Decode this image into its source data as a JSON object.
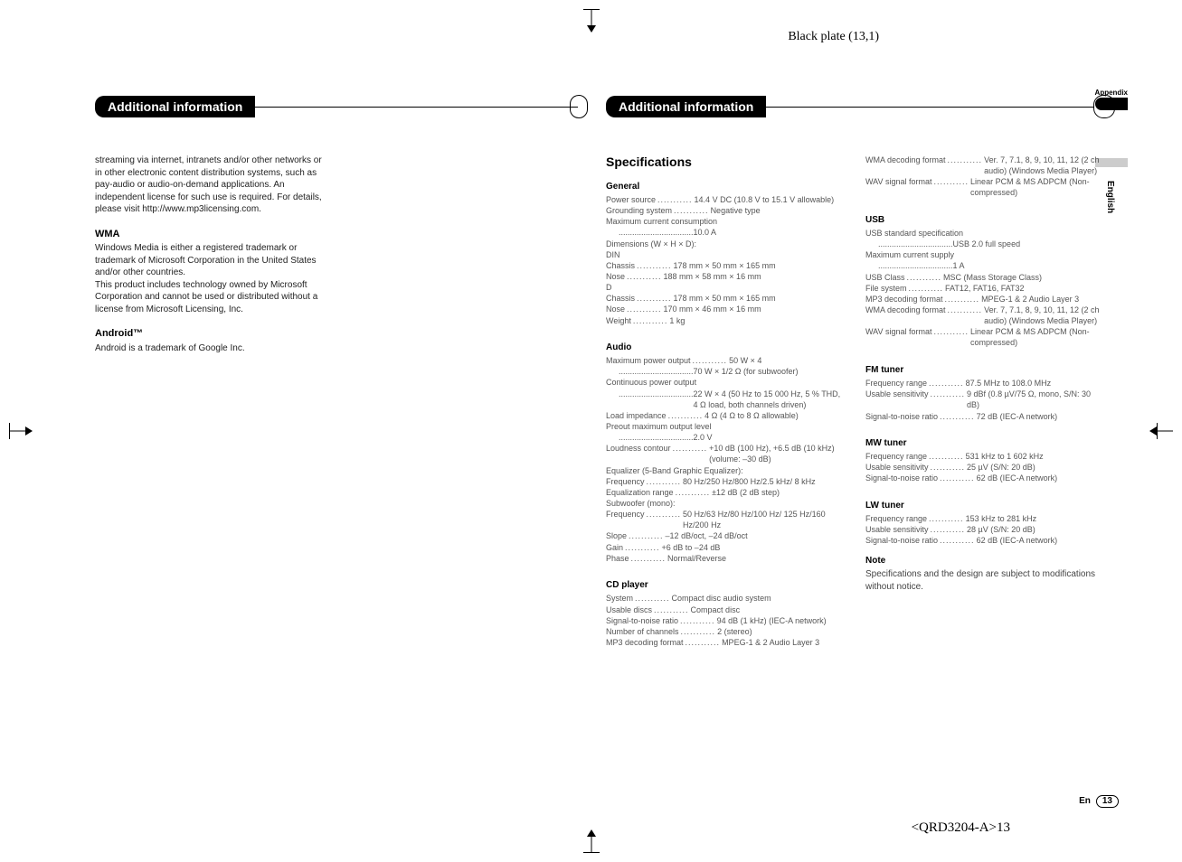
{
  "plate": "Black plate (13,1)",
  "section_title": "Additional information",
  "left": {
    "intro": "streaming via internet, intranets and/or other networks or in other electronic content distribution systems, such as pay-audio or audio-on-demand applications. An independent license for such use is required. For details, please visit http://www.mp3licensing.com.",
    "wma_h": "WMA",
    "wma_p": "Windows Media is either a registered trademark or trademark of Microsoft Corporation in the United States and/or other countries.\nThis product includes technology owned by Microsoft Corporation and cannot be used or distributed without a license from Microsoft Licensing, Inc.",
    "android_h": "Android™",
    "android_p": "Android is a trademark of Google Inc."
  },
  "specs_h": "Specifications",
  "general": {
    "h": "General",
    "rows": [
      {
        "l": "Power source",
        "v": "14.4 V DC (10.8 V to 15.1 V allowable)",
        "cont": true
      },
      {
        "l": "Grounding system",
        "v": "Negative type"
      },
      {
        "l": "Maximum current consumption",
        "v": "",
        "full": true
      },
      {
        "l": "",
        "v": "10.0 A",
        "indent": true
      },
      {
        "l": "Dimensions (W × H × D):",
        "v": "",
        "full": true
      },
      {
        "l": "DIN",
        "v": "",
        "full": true
      },
      {
        "l": "Chassis",
        "v": "178 mm × 50 mm × 165 mm"
      },
      {
        "l": "Nose",
        "v": "188 mm × 58 mm × 16 mm"
      },
      {
        "l": "D",
        "v": "",
        "full": true
      },
      {
        "l": "Chassis",
        "v": "178 mm × 50 mm × 165 mm"
      },
      {
        "l": "Nose",
        "v": "170 mm × 46 mm × 16 mm"
      },
      {
        "l": "Weight",
        "v": "1 kg"
      }
    ]
  },
  "audio": {
    "h": "Audio",
    "rows": [
      {
        "l": "Maximum power output",
        "v": "50 W × 4"
      },
      {
        "l": "",
        "v": "70 W × 1/2 Ω (for subwoofer)",
        "indent": true
      },
      {
        "l": "Continuous power output",
        "v": "",
        "full": true
      },
      {
        "l": "",
        "v": "22 W × 4 (50 Hz to 15 000 Hz, 5 % THD, 4 Ω load, both channels driven)",
        "indent": true
      },
      {
        "l": "Load impedance",
        "v": "4 Ω (4 Ω to 8 Ω allowable)"
      },
      {
        "l": "Preout maximum output level",
        "v": "",
        "full": true
      },
      {
        "l": "",
        "v": "2.0 V",
        "indent": true
      },
      {
        "l": "Loudness contour",
        "v": "+10 dB (100 Hz), +6.5 dB (10 kHz) (volume: –30 dB)",
        "cont": true
      },
      {
        "l": "Equalizer (5-Band Graphic Equalizer):",
        "v": "",
        "full": true
      },
      {
        "l": "Frequency",
        "v": "80 Hz/250 Hz/800 Hz/2.5 kHz/ 8 kHz",
        "cont": true
      },
      {
        "l": "Equalization range",
        "v": "±12 dB (2 dB step)"
      },
      {
        "l": "Subwoofer (mono):",
        "v": "",
        "full": true
      },
      {
        "l": "Frequency",
        "v": "50 Hz/63 Hz/80 Hz/100 Hz/ 125 Hz/160 Hz/200 Hz",
        "cont": true
      },
      {
        "l": "Slope",
        "v": "–12 dB/oct, –24 dB/oct"
      },
      {
        "l": "Gain",
        "v": "+6 dB to –24 dB"
      },
      {
        "l": "Phase",
        "v": "Normal/Reverse"
      }
    ]
  },
  "cd": {
    "h": "CD player",
    "rows": [
      {
        "l": "System",
        "v": "Compact disc audio system"
      },
      {
        "l": "Usable discs",
        "v": "Compact disc"
      },
      {
        "l": "Signal-to-noise ratio",
        "v": "94 dB (1 kHz) (IEC-A network)"
      },
      {
        "l": "Number of channels",
        "v": "2 (stereo)"
      },
      {
        "l": "MP3 decoding format",
        "v": "MPEG-1 & 2 Audio Layer 3"
      }
    ]
  },
  "cd_tail": {
    "rows": [
      {
        "l": "WMA decoding format",
        "v": "Ver. 7, 7.1, 8, 9, 10, 11, 12 (2 ch audio) (Windows Media Player)",
        "cont": true
      },
      {
        "l": "WAV signal format",
        "v": "Linear PCM & MS ADPCM (Non-compressed)",
        "cont": true
      }
    ]
  },
  "usb": {
    "h": "USB",
    "rows": [
      {
        "l": "USB standard specification",
        "v": "",
        "full": true
      },
      {
        "l": "",
        "v": "USB 2.0 full speed",
        "indent": true
      },
      {
        "l": "Maximum current supply",
        "v": "",
        "full": true
      },
      {
        "l": "",
        "v": "1 A",
        "indent": true
      },
      {
        "l": "USB Class",
        "v": "MSC (Mass Storage Class)"
      },
      {
        "l": "File system",
        "v": "FAT12, FAT16, FAT32"
      },
      {
        "l": "MP3 decoding format",
        "v": "MPEG-1 & 2 Audio Layer 3"
      },
      {
        "l": "WMA decoding format",
        "v": "Ver. 7, 7.1, 8, 9, 10, 11, 12 (2 ch audio) (Windows Media Player)",
        "cont": true
      },
      {
        "l": "WAV signal format",
        "v": "Linear PCM & MS ADPCM (Non-compressed)",
        "cont": true
      }
    ]
  },
  "fm": {
    "h": "FM tuner",
    "rows": [
      {
        "l": "Frequency range",
        "v": "87.5 MHz to 108.0 MHz"
      },
      {
        "l": "Usable sensitivity",
        "v": "9 dBf (0.8 µV/75 Ω, mono, S/N: 30 dB)",
        "cont": true
      },
      {
        "l": "Signal-to-noise ratio",
        "v": "72 dB (IEC-A network)"
      }
    ]
  },
  "mw": {
    "h": "MW tuner",
    "rows": [
      {
        "l": "Frequency range",
        "v": "531 kHz to 1 602 kHz"
      },
      {
        "l": "Usable sensitivity",
        "v": "25 µV (S/N: 20 dB)"
      },
      {
        "l": "Signal-to-noise ratio",
        "v": "62 dB (IEC-A network)"
      }
    ]
  },
  "lw": {
    "h": "LW tuner",
    "rows": [
      {
        "l": "Frequency range",
        "v": "153 kHz to 281 kHz"
      },
      {
        "l": "Usable sensitivity",
        "v": "28 µV (S/N: 20 dB)"
      },
      {
        "l": "Signal-to-noise ratio",
        "v": "62 dB (IEC-A network)"
      }
    ]
  },
  "note_h": "Note",
  "note_p": "Specifications and the design are subject to modifications without notice.",
  "appendix": "Appendix",
  "english": "English",
  "footer_lang": "En",
  "footer_num": "13",
  "footer_code": "<QRD3204-A>13"
}
